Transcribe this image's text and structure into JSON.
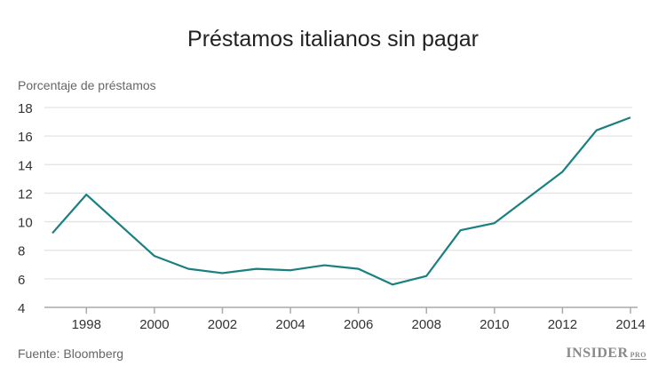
{
  "chart_data": {
    "type": "line",
    "title": "Préstamos italianos sin pagar",
    "ylabel": "Porcentaje de préstamos",
    "xlabel": "",
    "source": "Fuente: Bloomberg",
    "x": [
      1997,
      1998,
      1999,
      2000,
      2001,
      2002,
      2003,
      2004,
      2005,
      2006,
      2007,
      2008,
      2009,
      2010,
      2011,
      2012,
      2013,
      2014
    ],
    "series": [
      {
        "values": [
          9.2,
          11.9,
          9.75,
          7.6,
          6.7,
          6.4,
          6.7,
          6.6,
          6.95,
          6.7,
          5.6,
          6.2,
          9.4,
          9.9,
          11.7,
          13.5,
          16.4,
          17.3
        ],
        "color": "#1b7f80"
      }
    ],
    "xticks": [
      1998,
      2000,
      2002,
      2004,
      2006,
      2008,
      2010,
      2012,
      2014
    ],
    "yticks": [
      4,
      6,
      8,
      10,
      12,
      14,
      16,
      18
    ],
    "xlim": [
      1997,
      2014
    ],
    "ylim": [
      4,
      18
    ],
    "grid": "horizontal",
    "gridColor": "#e3e3e3"
  },
  "branding": {
    "logo": "INSIDER PRO"
  }
}
